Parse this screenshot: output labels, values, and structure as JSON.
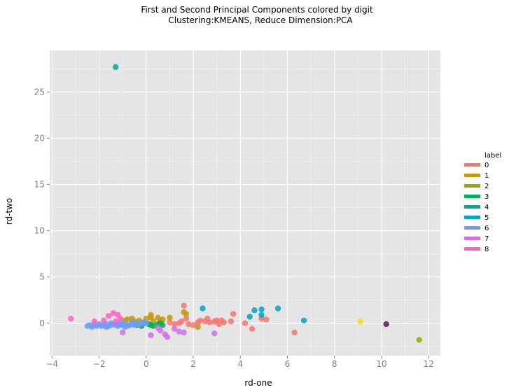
{
  "chart_data": {
    "type": "scatter",
    "title": "First and Second Principal Components colored by digit",
    "subtitle": "Clustering:KMEANS, Reduce Dimension:PCA",
    "xlabel": "rd-one",
    "ylabel": "rd-two",
    "xlim": [
      -4.1,
      12.5
    ],
    "ylim": [
      -3.5,
      29.5
    ],
    "xticks": [
      "-4",
      "-2",
      "0",
      "2",
      "4",
      "6",
      "8",
      "10",
      "12"
    ],
    "yticks": [
      "0",
      "5",
      "10",
      "15",
      "20",
      "25"
    ],
    "grid": true,
    "legend": {
      "title": "label",
      "placement": "right",
      "entries": [
        "0",
        "1",
        "2",
        "3",
        "4",
        "5",
        "6",
        "7",
        "8"
      ]
    },
    "colors": [
      "#f8766d",
      "#c49a00",
      "#99a800",
      "#00b050",
      "#00a991",
      "#00a6c9",
      "#6e9cf9",
      "#d36cf2",
      "#ff61c3",
      "#ffdb00",
      "#5b1a5e"
    ],
    "series": [
      {
        "name": "0",
        "points": [
          [
            1.6,
            1.9
          ],
          [
            1.7,
            0.5
          ],
          [
            1.5,
            0.2
          ],
          [
            2.0,
            -0.2
          ],
          [
            2.3,
            0.3
          ],
          [
            2.6,
            0.5
          ],
          [
            2.7,
            0.1
          ],
          [
            2.9,
            0.2
          ],
          [
            3.0,
            0.3
          ],
          [
            3.1,
            -0.1
          ],
          [
            3.2,
            0.3
          ],
          [
            3.3,
            0.1
          ],
          [
            3.6,
            0.2
          ],
          [
            3.7,
            1.0
          ],
          [
            4.2,
            0.0
          ],
          [
            4.5,
            -0.6
          ],
          [
            4.9,
            0.5
          ],
          [
            5.1,
            0.4
          ],
          [
            6.3,
            -1.0
          ],
          [
            1.2,
            -0.1
          ],
          [
            1.4,
            0.0
          ],
          [
            1.8,
            -0.1
          ],
          [
            2.2,
            0.1
          ],
          [
            2.5,
            0.2
          ],
          [
            1.0,
            0.1
          ]
        ]
      },
      {
        "name": "1",
        "points": [
          [
            -0.8,
            0.4
          ],
          [
            -0.6,
            0.5
          ],
          [
            -0.3,
            0.3
          ],
          [
            0.0,
            0.5
          ],
          [
            0.2,
            0.6
          ],
          [
            0.2,
            0.9
          ],
          [
            0.5,
            0.6
          ],
          [
            0.7,
            0.4
          ],
          [
            1.0,
            0.6
          ],
          [
            1.7,
            1.0
          ],
          [
            1.6,
            1.2
          ],
          [
            2.2,
            -0.4
          ],
          [
            0.3,
            0.2
          ],
          [
            -0.1,
            0.1
          ],
          [
            -0.5,
            0.2
          ],
          [
            0.6,
            0.2
          ],
          [
            -0.9,
            0.3
          ]
        ]
      },
      {
        "name": "2",
        "points": [
          [
            11.6,
            -1.8
          ]
        ]
      },
      {
        "name": "3",
        "points": [
          [
            -0.2,
            -0.3
          ],
          [
            0.2,
            -0.2
          ],
          [
            0.5,
            -0.1
          ],
          [
            0.7,
            -0.2
          ],
          [
            -0.4,
            -0.2
          ],
          [
            0.1,
            -0.1
          ],
          [
            0.3,
            -0.3
          ],
          [
            0.6,
            0.0
          ],
          [
            -0.1,
            0.0
          ]
        ]
      },
      {
        "name": "4",
        "points": [
          [
            -1.3,
            27.7
          ]
        ]
      },
      {
        "name": "5",
        "points": [
          [
            2.4,
            1.6
          ],
          [
            4.4,
            0.7
          ],
          [
            4.6,
            1.4
          ],
          [
            4.9,
            1.5
          ],
          [
            4.9,
            0.9
          ],
          [
            5.6,
            1.6
          ],
          [
            6.7,
            0.3
          ]
        ]
      },
      {
        "name": "6",
        "points": [
          [
            -2.5,
            -0.3
          ],
          [
            -2.4,
            -0.2
          ],
          [
            -2.2,
            -0.2
          ],
          [
            -2.0,
            -0.1
          ],
          [
            -1.9,
            -0.3
          ],
          [
            -1.8,
            -0.2
          ],
          [
            -1.7,
            -0.1
          ],
          [
            -1.6,
            -0.3
          ],
          [
            -1.5,
            -0.2
          ],
          [
            -1.4,
            -0.1
          ],
          [
            -1.3,
            -0.2
          ],
          [
            -1.2,
            -0.3
          ],
          [
            -1.1,
            -0.1
          ],
          [
            -1.0,
            -0.2
          ],
          [
            -0.9,
            -0.1
          ],
          [
            -0.8,
            -0.3
          ],
          [
            -0.7,
            -0.2
          ],
          [
            -0.6,
            -0.1
          ],
          [
            -0.5,
            -0.2
          ],
          [
            -0.4,
            0.0
          ],
          [
            -0.3,
            -0.1
          ],
          [
            -0.2,
            0.0
          ],
          [
            -0.1,
            0.1
          ],
          [
            0.0,
            0.0
          ],
          [
            -2.3,
            -0.4
          ],
          [
            -2.1,
            -0.3
          ],
          [
            -1.5,
            0.0
          ],
          [
            -1.0,
            0.0
          ],
          [
            -0.6,
            0.1
          ],
          [
            -1.7,
            -0.4
          ],
          [
            -1.2,
            0.0
          ],
          [
            -0.9,
            -0.4
          ]
        ]
      },
      {
        "name": "7",
        "points": [
          [
            -1.0,
            -1.0
          ],
          [
            0.2,
            -1.3
          ],
          [
            0.6,
            -0.8
          ],
          [
            0.8,
            -1.2
          ],
          [
            0.9,
            -1.5
          ],
          [
            1.4,
            -0.9
          ],
          [
            1.6,
            -1.0
          ],
          [
            2.9,
            -1.1
          ],
          [
            0.5,
            -0.5
          ],
          [
            1.2,
            -0.6
          ]
        ]
      },
      {
        "name": "8",
        "points": [
          [
            -3.2,
            0.5
          ],
          [
            -2.2,
            0.2
          ],
          [
            -1.6,
            0.8
          ],
          [
            -1.4,
            1.1
          ],
          [
            -1.2,
            0.9
          ],
          [
            -1.1,
            0.5
          ],
          [
            -1.3,
            0.2
          ],
          [
            -1.8,
            0.3
          ]
        ]
      },
      {
        "name": "",
        "points": [
          [
            9.1,
            0.2
          ]
        ]
      },
      {
        "name": "",
        "points": [
          [
            10.2,
            -0.1
          ]
        ]
      }
    ]
  }
}
